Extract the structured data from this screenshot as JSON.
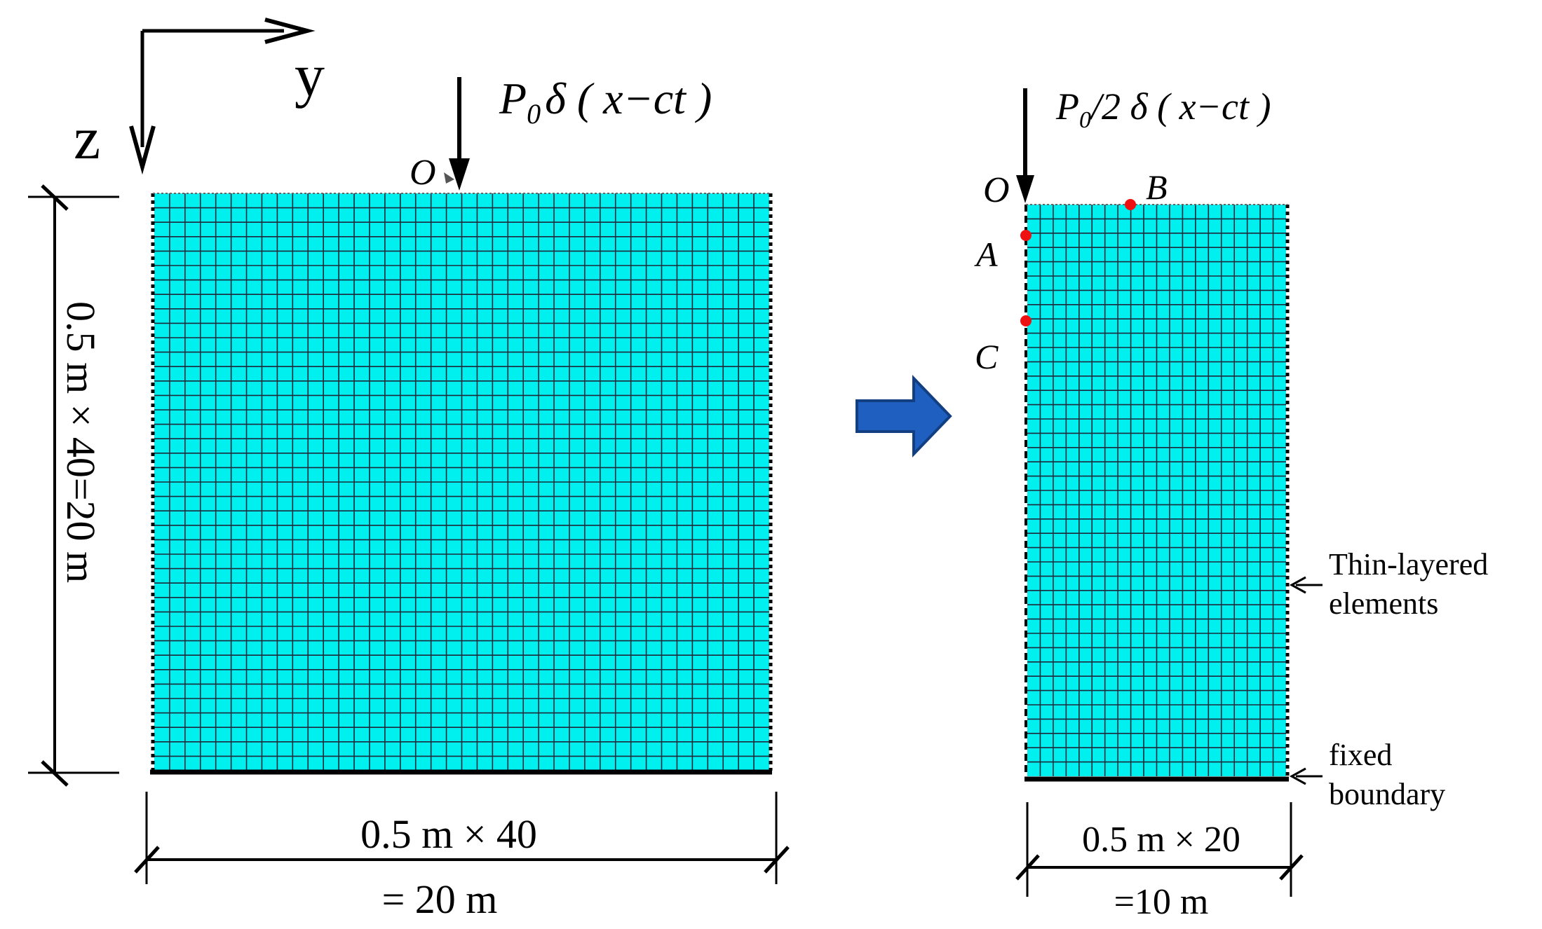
{
  "colors": {
    "mesh_fill": "#00f0f0",
    "mesh_grid": "#1c2a3a",
    "point_marker": "#ee1111",
    "arrow_fill": "#1f5fbf",
    "arrow_stroke": "#123f82",
    "line": "#000000"
  },
  "axes": {
    "y_label": "y",
    "z_label": "z"
  },
  "left_model": {
    "origin_label": "O",
    "load_label": {
      "P": "P",
      "sub": "0",
      "rest": "δ ( x−ct )"
    },
    "cols": 40,
    "rows": 40,
    "height_label": "0.5 m × 40=20 m",
    "width_label_line1": "0.5 m × 40",
    "width_label_line2": "= 20 m"
  },
  "transition_arrow_icon": "right-arrow-icon",
  "right_model": {
    "origin_label": "O",
    "load_label": {
      "P": "P",
      "sub": "0",
      "rest": "/2 δ ( x−ct )"
    },
    "cols": 20,
    "rows": 40,
    "points": [
      {
        "label": "A"
      },
      {
        "label": "B"
      },
      {
        "label": "C"
      }
    ],
    "thin_layer_label_line1": "Thin-layered",
    "thin_layer_label_line2": "elements",
    "fixed_label_line1": "fixed",
    "fixed_label_line2": "boundary",
    "width_label_line1": "0.5 m × 20",
    "width_label_line2": "=10 m"
  }
}
